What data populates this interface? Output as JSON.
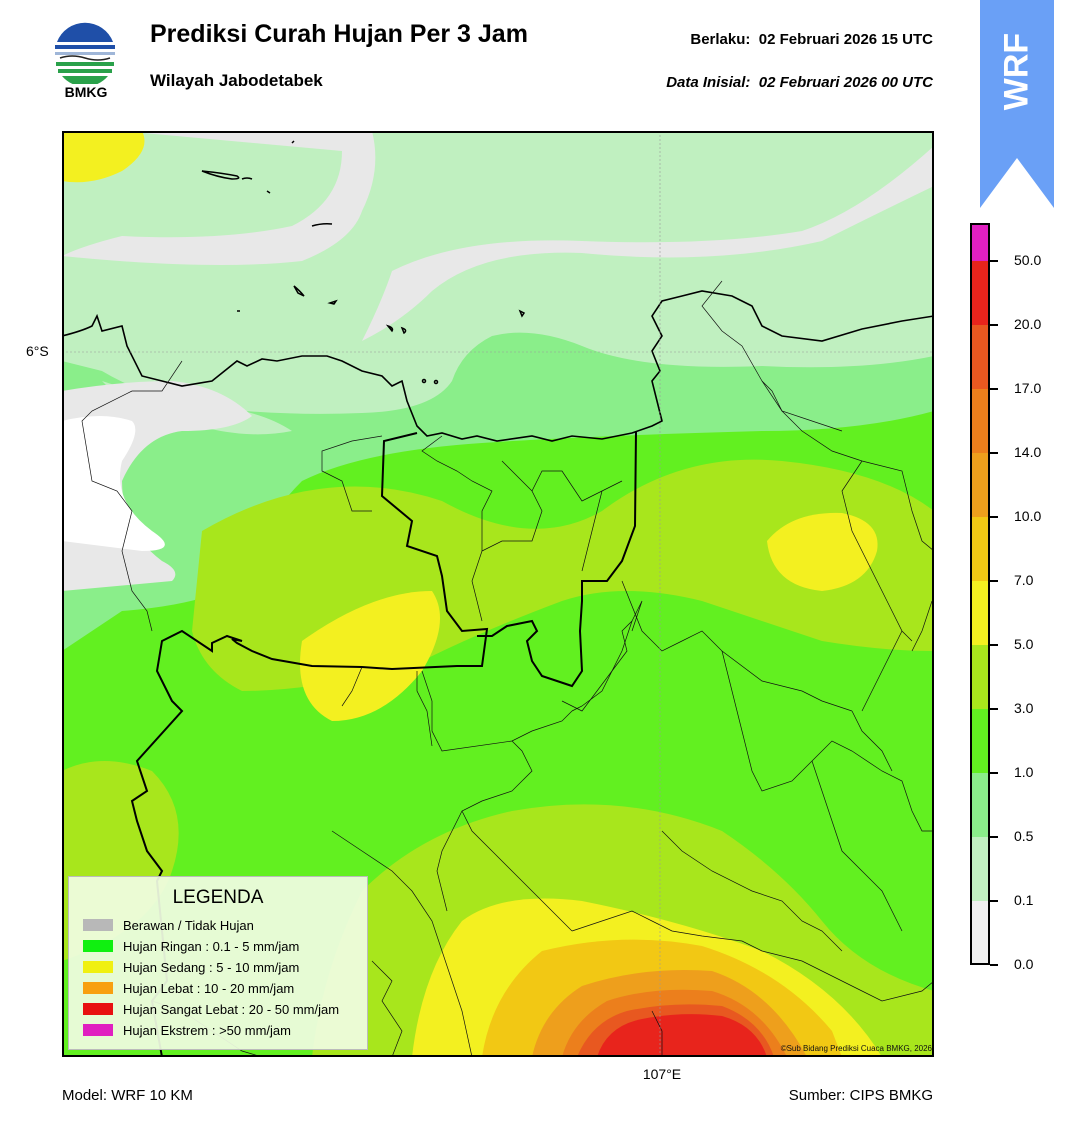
{
  "header": {
    "title": "Prediksi Curah Hujan Per 3 Jam",
    "subtitle": "Wilayah Jabodetabek",
    "valid_label": "Berlaku:",
    "valid_time": "02 Februari 2026 15 UTC",
    "init_label": "Data Inisial:",
    "init_time": "02 Februari 2026 00 UTC"
  },
  "logo": {
    "icon": "bmkg-logo",
    "text": "BMKG"
  },
  "badge": {
    "text": "WRF",
    "color": "#6aa0f6"
  },
  "map": {
    "lat_label": "6°S",
    "lon_label": "107°E",
    "copyright": "©Sub Bidang Prediksi Cuaca BMKG, 2026"
  },
  "colorbar": {
    "labels": [
      "50.0",
      "20.0",
      "17.0",
      "14.0",
      "10.0",
      "7.0",
      "5.0",
      "3.0",
      "1.0",
      "0.5",
      "0.1",
      "0.0"
    ],
    "colors_top_to_bottom": [
      "#e020c0",
      "#e8241c",
      "#e85820",
      "#ec7f1c",
      "#ee9f1c",
      "#f2c814",
      "#f3f020",
      "#a8e61c",
      "#62f020",
      "#8aee8a",
      "#c0f0c0",
      "#f0f0f0"
    ]
  },
  "legend": {
    "title": "LEGENDA",
    "items": [
      {
        "label": "Berawan / Tidak Hujan",
        "color": "#b8b8b8"
      },
      {
        "label": "Hujan Ringan : 0.1 - 5 mm/jam",
        "color": "#10f010"
      },
      {
        "label": "Hujan Sedang : 5 - 10 mm/jam",
        "color": "#f0f010"
      },
      {
        "label": "Hujan Lebat : 10 - 20 mm/jam",
        "color": "#f8a010"
      },
      {
        "label": "Hujan Sangat Lebat : 20 - 50 mm/jam",
        "color": "#e81010"
      },
      {
        "label": "Hujan Ekstrem : >50 mm/jam",
        "color": "#e020c0"
      }
    ]
  },
  "footer": {
    "model": "Model: WRF 10 KM",
    "source": "Sumber: CIPS BMKG"
  }
}
